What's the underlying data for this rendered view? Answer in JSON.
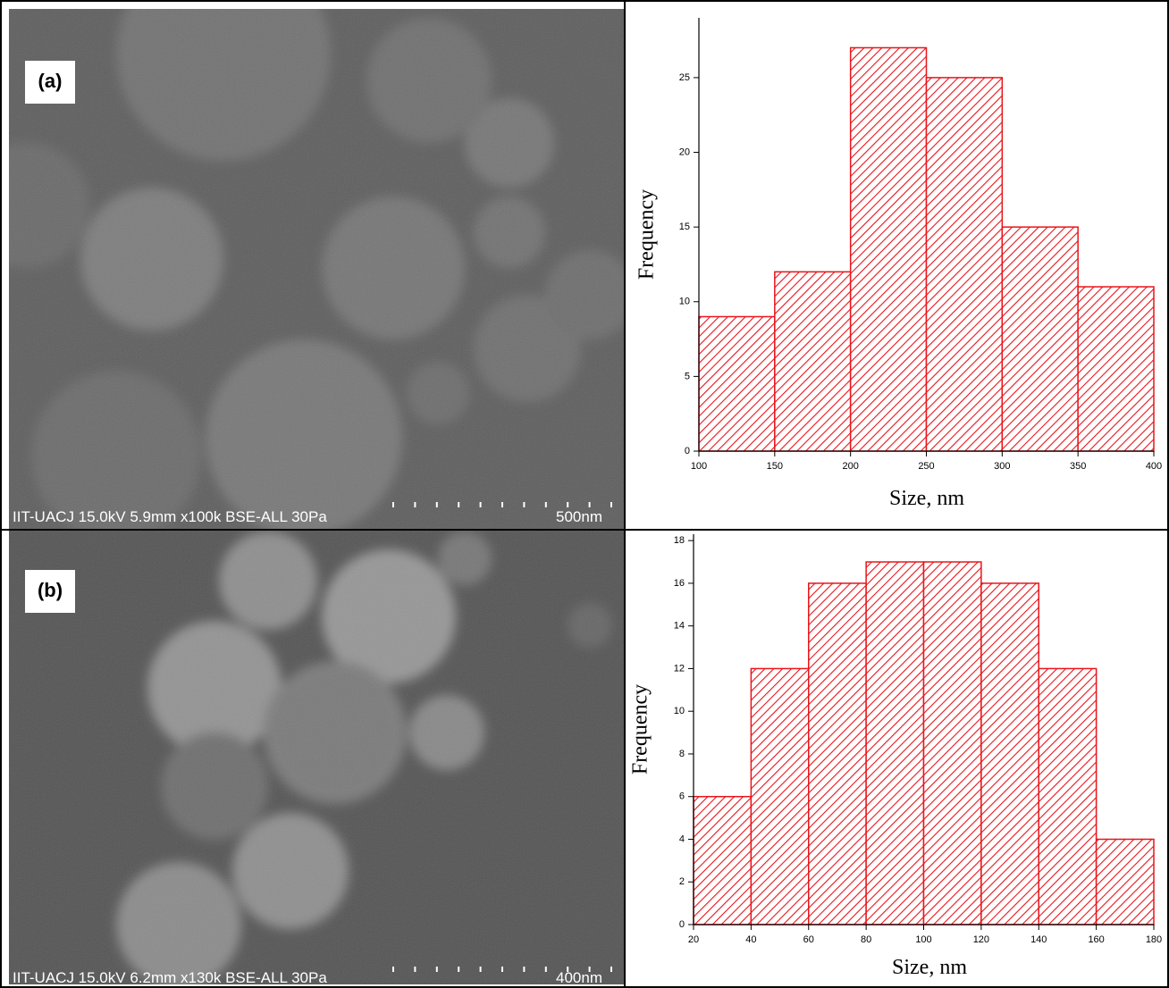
{
  "panels": [
    {
      "label": "(a)",
      "caption": "IIT-UACJ 15.0kV 5.9mm x100k BSE-ALL 30Pa",
      "scale_bar": "500nm"
    },
    {
      "label": "(b)",
      "caption": "IIT-UACJ 15.0kV 6.2mm x130k BSE-ALL 30Pa",
      "scale_bar": "400nm"
    }
  ],
  "chart_data": [
    {
      "type": "histogram",
      "xlabel": "Size, nm",
      "ylabel": "Frequency",
      "bins": [
        100,
        150,
        200,
        250,
        300,
        350,
        400
      ],
      "values": [
        9,
        12,
        27,
        25,
        15,
        11
      ],
      "color": "#e8151b",
      "xlim": [
        100,
        400
      ],
      "ylim": [
        0,
        29
      ],
      "xticks": [
        100,
        150,
        200,
        250,
        300,
        350,
        400
      ],
      "yticks": [
        0,
        5,
        10,
        15,
        20,
        25
      ]
    },
    {
      "type": "histogram",
      "xlabel": "Size, nm",
      "ylabel": "Frequency",
      "bins": [
        20,
        40,
        60,
        80,
        100,
        120,
        140,
        160,
        180
      ],
      "values": [
        6,
        12,
        16,
        17,
        17,
        16,
        12,
        4
      ],
      "color": "#e8151b",
      "xlim": [
        20,
        180
      ],
      "ylim": [
        0,
        18.3
      ],
      "xticks": [
        20,
        40,
        60,
        80,
        100,
        120,
        140,
        160,
        180
      ],
      "yticks": [
        0,
        2,
        4,
        6,
        8,
        10,
        12,
        14,
        16,
        18
      ]
    }
  ]
}
